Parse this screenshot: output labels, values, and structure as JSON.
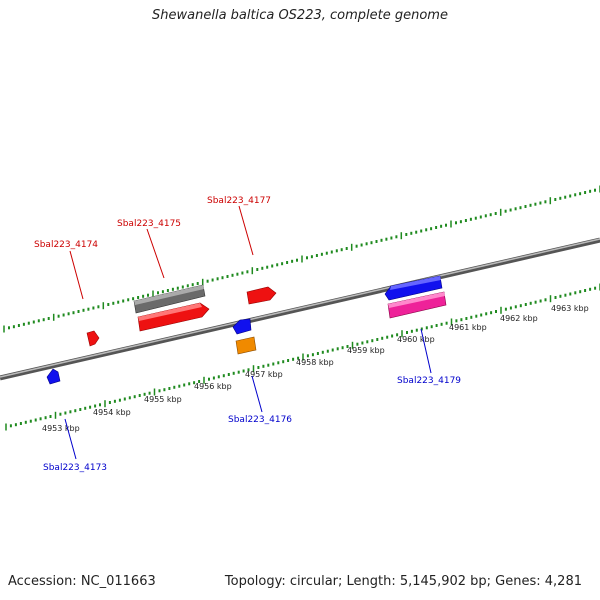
{
  "title": "Shewanella baltica OS223, complete genome",
  "footer": {
    "accession": "Accession: NC_011663",
    "summary": "Topology: circular; Length: 5,145,902 bp; Genes: 4,281"
  },
  "colors": {
    "backbone": "#8a8a8a",
    "tick": "#1f8a1f",
    "forward_label": "#cc0000",
    "reverse_label": "#0000cc",
    "red": "#ee1111",
    "gray": "#707070",
    "blue": "#1111ee",
    "pink": "#ee2299",
    "orange": "#f08a00"
  },
  "tick_labels": [
    "4953 kbp",
    "4954 kbp",
    "4955 kbp",
    "4956 kbp",
    "4957 kbp",
    "4958 kbp",
    "4959 kbp",
    "4960 kbp",
    "4961 kbp",
    "4962 kbp",
    "4963 kbp"
  ],
  "gene_labels": {
    "g4174": "Sbal223_4174",
    "g4175": "Sbal223_4175",
    "g4177": "Sbal223_4177",
    "g4173": "Sbal223_4173",
    "g4176": "Sbal223_4176",
    "g4179": "Sbal223_4179"
  }
}
